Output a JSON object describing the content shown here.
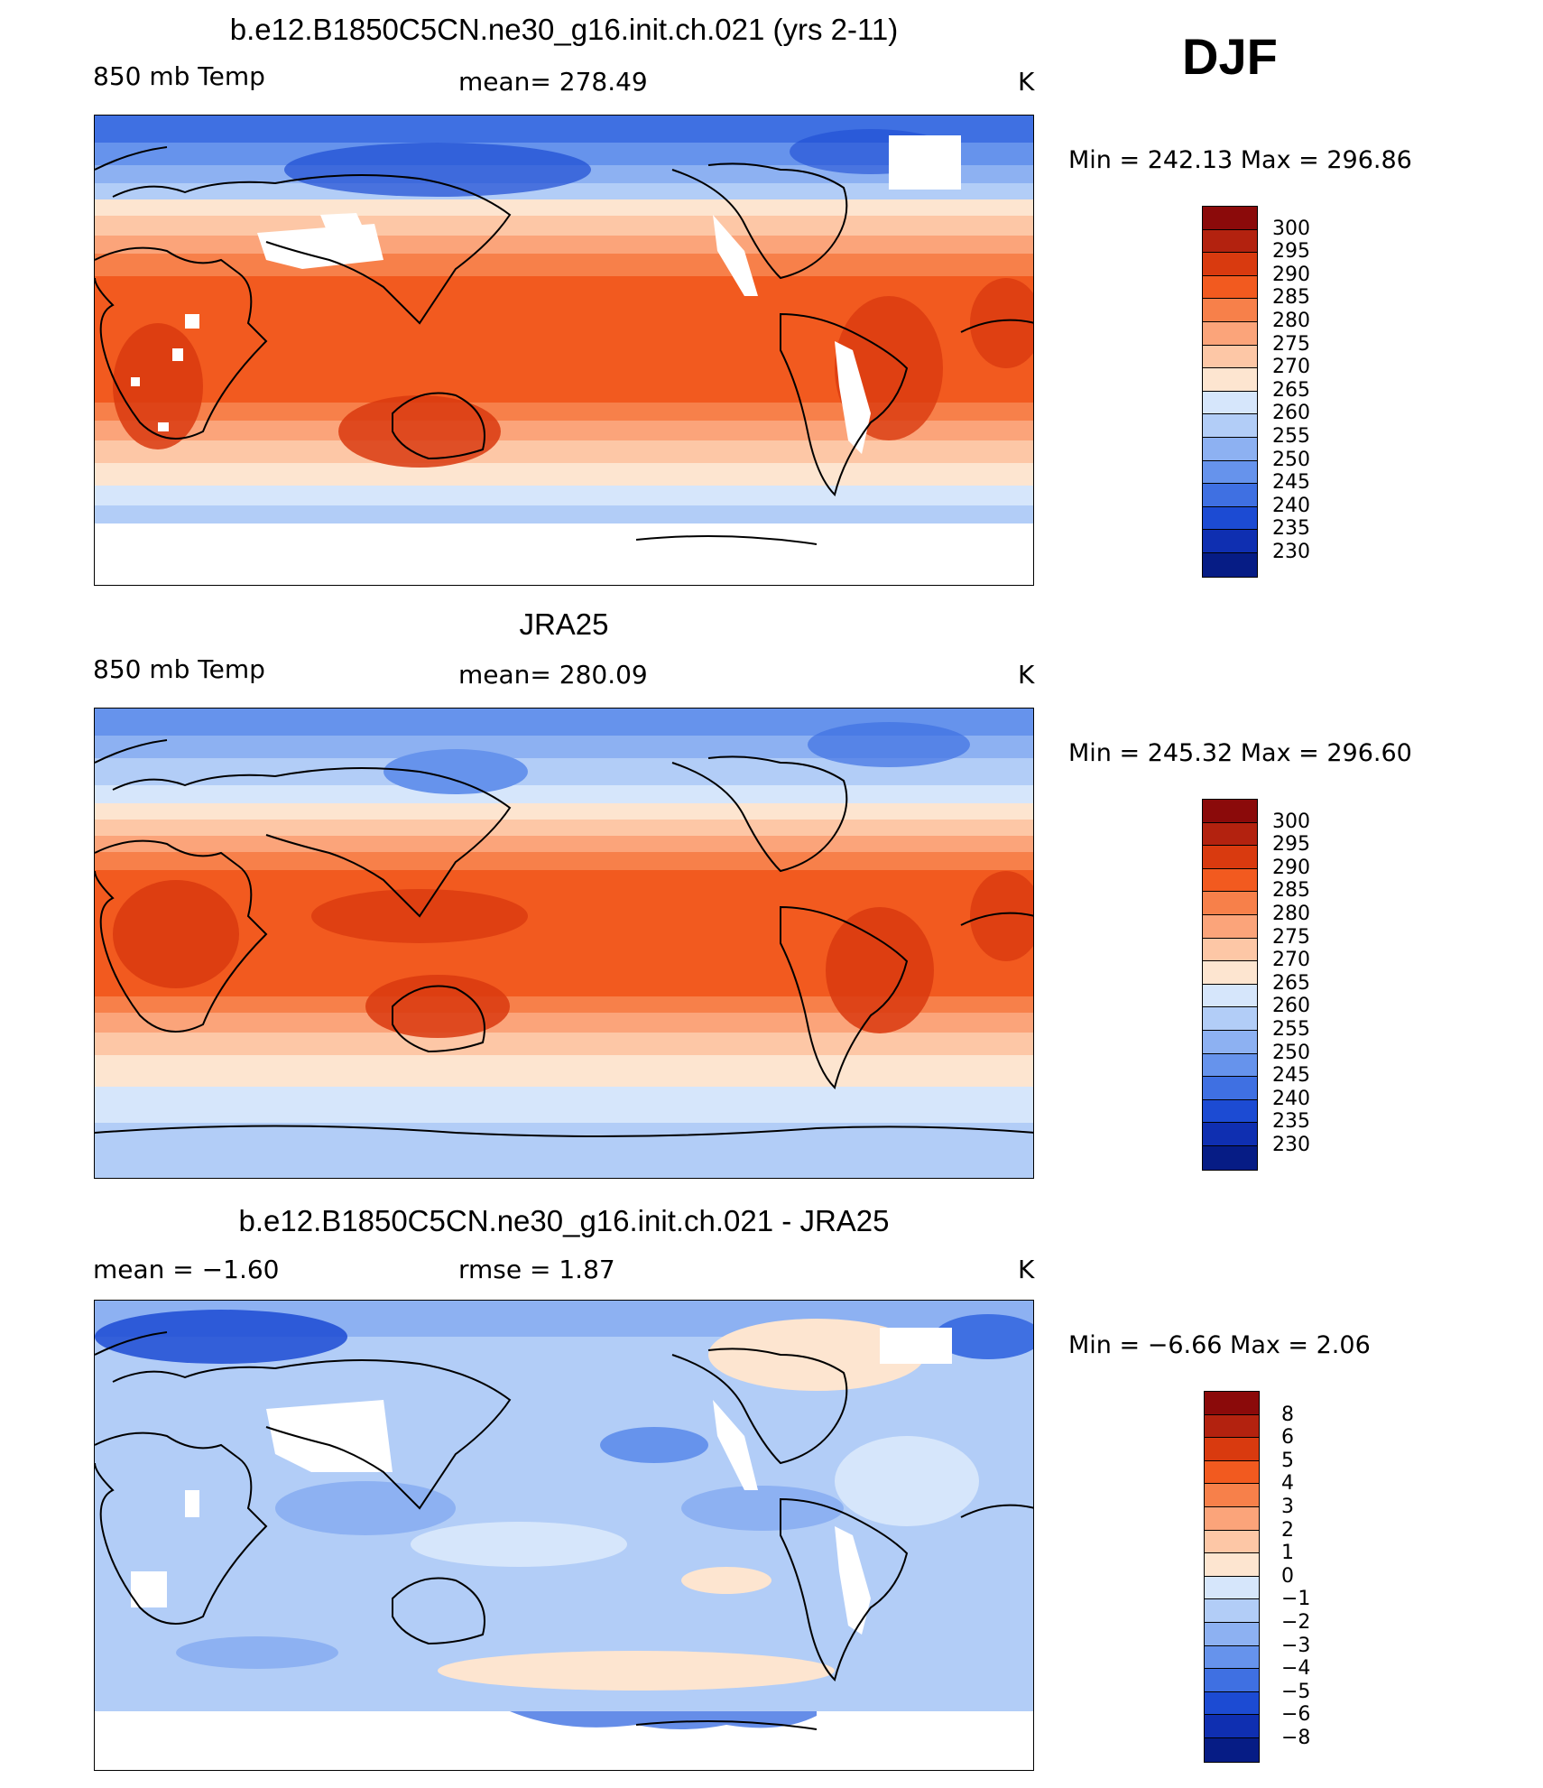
{
  "season": "DJF",
  "panels": [
    {
      "title": "b.e12.B1850C5CN.ne30_g16.init.ch.021 (yrs 2-11)",
      "left_label": "850 mb Temp",
      "center_label": "mean=  278.49",
      "right_label": "K",
      "minmax": "Min  =  242.13  Max  =  296.86",
      "colorbar": {
        "labels": [
          "300",
          "295",
          "290",
          "285",
          "280",
          "275",
          "270",
          "265",
          "260",
          "255",
          "250",
          "245",
          "240",
          "235",
          "230"
        ],
        "colors": [
          "#8b0a0a",
          "#b3220f",
          "#d93a0f",
          "#f25a1f",
          "#f7804a",
          "#fba47a",
          "#fdc7a6",
          "#fde5d0",
          "#d6e6fb",
          "#b2cdf7",
          "#8db1f2",
          "#6693ec",
          "#3f70e2",
          "#1c4bd3",
          "#0f2fb1",
          "#061c85"
        ]
      }
    },
    {
      "title": "JRA25",
      "left_label": "850 mb Temp",
      "center_label": "mean=  280.09",
      "right_label": "K",
      "minmax": "Min  =  245.32  Max  =  296.60",
      "colorbar": {
        "labels": [
          "300",
          "295",
          "290",
          "285",
          "280",
          "275",
          "270",
          "265",
          "260",
          "255",
          "250",
          "245",
          "240",
          "235",
          "230"
        ],
        "colors": [
          "#8b0a0a",
          "#b3220f",
          "#d93a0f",
          "#f25a1f",
          "#f7804a",
          "#fba47a",
          "#fdc7a6",
          "#fde5d0",
          "#d6e6fb",
          "#b2cdf7",
          "#8db1f2",
          "#6693ec",
          "#3f70e2",
          "#1c4bd3",
          "#0f2fb1",
          "#061c85"
        ]
      }
    },
    {
      "title": "b.e12.B1850C5CN.ne30_g16.init.ch.021 - JRA25",
      "left_label": "mean =    −1.60",
      "center_label": "rmse =     1.87",
      "right_label": "K",
      "minmax": "Min  =    −6.66  Max  =     2.06",
      "colorbar": {
        "labels": [
          "8",
          "6",
          "5",
          "4",
          "3",
          "2",
          "1",
          "0",
          "−1",
          "−2",
          "−3",
          "−4",
          "−5",
          "−6",
          "−8"
        ],
        "colors": [
          "#8b0a0a",
          "#b3220f",
          "#d93a0f",
          "#f25a1f",
          "#f7804a",
          "#fba47a",
          "#fdc7a6",
          "#fde5d0",
          "#d6e6fb",
          "#b2cdf7",
          "#8db1f2",
          "#6693ec",
          "#3f70e2",
          "#1c4bd3",
          "#0f2fb1",
          "#061c85"
        ]
      }
    }
  ]
}
